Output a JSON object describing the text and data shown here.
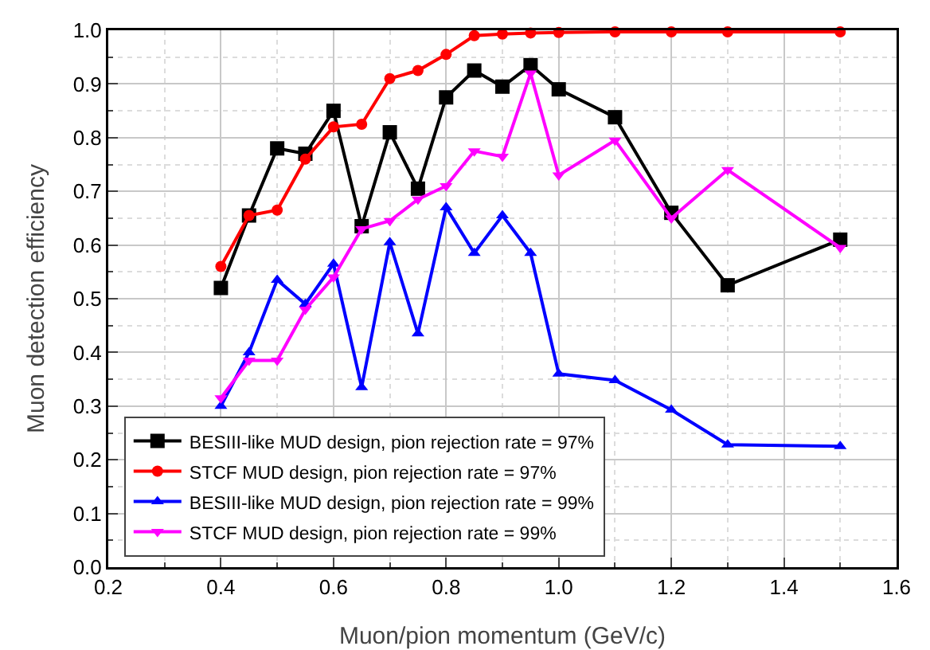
{
  "chart_data": {
    "type": "line",
    "xlabel": "Muon/pion momentum (GeV/c)",
    "ylabel": "Muon detection efficiency",
    "x": [
      0.4,
      0.45,
      0.5,
      0.55,
      0.6,
      0.65,
      0.7,
      0.75,
      0.8,
      0.85,
      0.9,
      0.95,
      1.0,
      1.1,
      1.2,
      1.3,
      1.5
    ],
    "series": [
      {
        "name": "BESIII-like MUD design, pion rejection rate = 97%",
        "color": "#000000",
        "marker": "square",
        "values": [
          0.52,
          0.655,
          0.78,
          0.77,
          0.85,
          0.635,
          0.81,
          0.705,
          0.875,
          0.925,
          0.895,
          0.935,
          0.89,
          0.838,
          0.66,
          0.525,
          0.61
        ]
      },
      {
        "name": "STCF MUD design, pion rejection rate = 97%",
        "color": "#ff0000",
        "marker": "circle",
        "values": [
          0.56,
          0.655,
          0.665,
          0.76,
          0.82,
          0.825,
          0.91,
          0.925,
          0.955,
          0.99,
          0.993,
          0.995,
          0.996,
          0.997,
          0.997,
          0.997,
          0.997
        ]
      },
      {
        "name": "BESIII-like MUD design, pion rejection rate = 99%",
        "color": "#0000ff",
        "marker": "triangle",
        "values": [
          0.3,
          0.4,
          0.535,
          0.49,
          0.565,
          0.335,
          0.605,
          0.435,
          0.67,
          0.585,
          0.655,
          0.585,
          0.36,
          0.348,
          0.293,
          0.228,
          0.225
        ]
      },
      {
        "name": "STCF MUD design, pion rejection rate = 99%",
        "color": "#ff00ff",
        "marker": "triangle-down",
        "values": [
          0.315,
          0.385,
          0.385,
          0.48,
          0.54,
          0.63,
          0.645,
          0.685,
          0.71,
          0.775,
          0.765,
          0.92,
          0.73,
          0.795,
          0.65,
          0.74,
          0.595
        ]
      }
    ],
    "xlim": [
      0.2,
      1.6
    ],
    "xticks": [
      0.2,
      0.4,
      0.6,
      0.8,
      {
        "value": 1,
        "label": "1.0"
      },
      1.2,
      1.4,
      1.6
    ],
    "ylim": [
      0,
      1
    ],
    "yticks": [
      {
        "value": 0,
        "label": "0.0"
      },
      0.1,
      0.2,
      0.3,
      0.4,
      0.5,
      0.6,
      0.7,
      0.8,
      0.9,
      {
        "value": 1,
        "label": "1.0"
      }
    ],
    "grid": true,
    "legend": "bottom left",
    "line_style": "solid"
  }
}
